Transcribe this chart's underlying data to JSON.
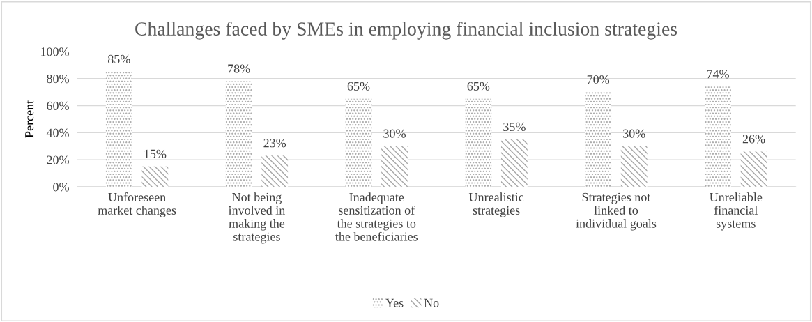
{
  "chart_data": {
    "type": "bar",
    "title": "Challanges faced by SMEs in employing financial inclusion strategies",
    "ylabel": "Percent",
    "categories": [
      "Unforeseen\nmarket changes",
      "Not being\ninvolved in\nmaking the\nstrategies",
      "Inadequate\nsensitization of\nthe strategies to\nthe beneficiaries",
      "Unrealistic\nstrategies",
      "Strategies not\nlinked to\nindividual goals",
      "Unreliable\nfinancial\nsystems"
    ],
    "series": [
      {
        "name": "Yes",
        "color": "#a6a6a6",
        "values": [
          85,
          78,
          65,
          65,
          70,
          74
        ]
      },
      {
        "name": "No",
        "color": "#a6a6a6",
        "values": [
          15,
          23,
          30,
          35,
          30,
          26
        ]
      }
    ],
    "ylim": [
      0,
      100
    ],
    "yticks": [
      {
        "value": 0,
        "label": "0%"
      },
      {
        "value": 20,
        "label": "20%"
      },
      {
        "value": 40,
        "label": "40%"
      },
      {
        "value": 60,
        "label": "60%"
      },
      {
        "value": 80,
        "label": "80%"
      },
      {
        "value": 100,
        "label": "100%"
      }
    ],
    "value_labels": [
      [
        "85%",
        "78%",
        "65%",
        "65%",
        "70%",
        "74%"
      ],
      [
        "15%",
        "23%",
        "30%",
        "35%",
        "30%",
        "26%"
      ]
    ],
    "grid": "y",
    "legend": "bottom"
  }
}
